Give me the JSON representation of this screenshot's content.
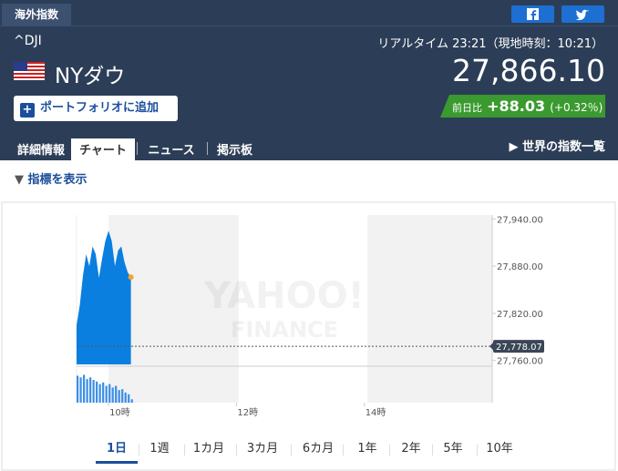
{
  "header": {
    "tab": "海外指数",
    "symbol": "^DJI",
    "realtime": "リアルタイム 23:21（現地時刻：10:21）",
    "name": "NYダウ",
    "price": "27,866.10",
    "portfolio_button": "ポートフォリオに追加",
    "change": {
      "label": "前日比",
      "value": "+88.03",
      "percent": "(+0.32％)"
    }
  },
  "tabs": [
    "詳細情報",
    "チャート",
    "ニュース",
    "掲示板"
  ],
  "active_tab": 1,
  "world_link": "世界の指数一覧",
  "indicator_toggle": "指標を表示",
  "chart_data": {
    "type": "area",
    "watermark": [
      "YAHOO!",
      "FINANCE"
    ],
    "x": [
      570,
      573,
      576,
      579,
      582,
      585,
      588,
      591,
      594,
      597,
      600,
      603,
      606,
      609,
      612,
      615,
      618,
      621
    ],
    "xlim": [
      570,
      960
    ],
    "xticks": [
      {
        "value": 600,
        "label": "10時"
      },
      {
        "value": 720,
        "label": "12時"
      },
      {
        "value": 840,
        "label": "14時"
      }
    ],
    "shaded": [
      [
        600,
        722
      ],
      [
        843,
        960
      ]
    ],
    "series": [
      {
        "color": "#0a7fe0",
        "values": [
          27805,
          27830,
          27868,
          27895,
          27880,
          27905,
          27895,
          27865,
          27890,
          27912,
          27925,
          27912,
          27880,
          27900,
          27905,
          27885,
          27872,
          27866
        ]
      }
    ],
    "volume": {
      "color": "#3a8ee6",
      "values": [
        32,
        30,
        33,
        28,
        30,
        27,
        25,
        22,
        24,
        20,
        22,
        18,
        20,
        15,
        16,
        12,
        10,
        4
      ],
      "ylim": [
        0,
        40
      ]
    },
    "ylim": [
      27755,
      27945
    ],
    "yticks": [
      {
        "value": 27940,
        "label": "27,940.00"
      },
      {
        "value": 27880,
        "label": "27,880.00"
      },
      {
        "value": 27820,
        "label": "27,820.00"
      },
      {
        "value": 27760,
        "label": "27,760.00"
      }
    ],
    "prev_close": {
      "value": 27778.07,
      "label": "27,778.07"
    }
  },
  "periods": [
    "1日",
    "1週",
    "1カ月",
    "3カ月",
    "6カ月",
    "1年",
    "2年",
    "5年",
    "10年"
  ],
  "active_period": 0
}
